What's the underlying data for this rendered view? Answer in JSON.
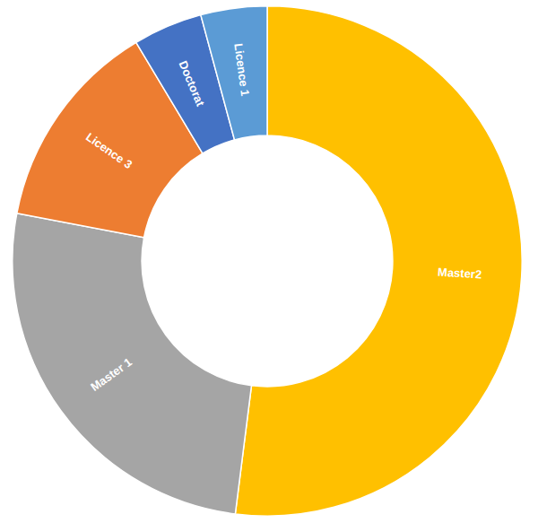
{
  "chart_data": {
    "type": "pie",
    "categories": [
      "Master2",
      "Master 1",
      "Licence 3",
      "Doctorat",
      "Licence 1"
    ],
    "values": [
      52,
      26,
      13.4,
      4.4,
      4.2
    ],
    "colors": [
      "#ffc000",
      "#a5a5a5",
      "#ed7d31",
      "#4472c4",
      "#5b9bd5"
    ]
  }
}
